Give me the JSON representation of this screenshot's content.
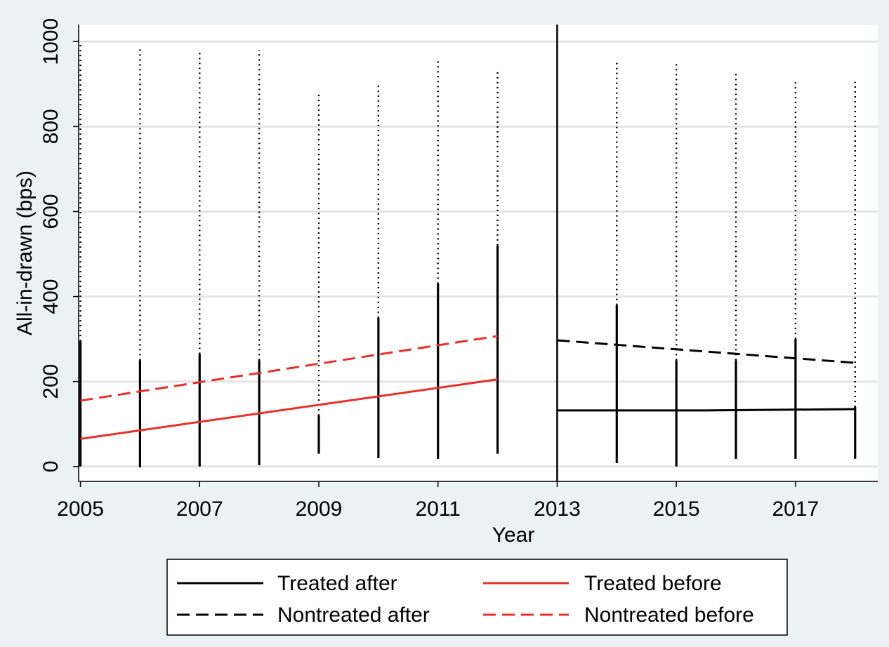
{
  "chart_data": {
    "type": "line",
    "xlabel": "Year",
    "ylabel": "All-in-drawn (bps)",
    "xlim": [
      2004.97,
      2018.38
    ],
    "ylim": [
      -35,
      1040
    ],
    "x_ticks": [
      2005,
      2007,
      2009,
      2011,
      2013,
      2015,
      2017
    ],
    "y_ticks": [
      0,
      200,
      400,
      600,
      800,
      1000
    ],
    "grid": "horizontal",
    "treatment_year": 2013,
    "legend_position": "bottom",
    "series": [
      {
        "name": "Treated after",
        "color": "#000000",
        "dash": "solid",
        "x": [
          2013,
          2015.5,
          2018
        ],
        "y": [
          132,
          132,
          135
        ]
      },
      {
        "name": "Treated before",
        "color": "#e8302a",
        "dash": "solid",
        "x": [
          2005,
          2012
        ],
        "y": [
          65,
          205
        ]
      },
      {
        "name": "Nontreated after",
        "color": "#000000",
        "dash": "dashed",
        "x": [
          2013,
          2018
        ],
        "y": [
          297,
          244
        ]
      },
      {
        "name": "Nontreated before",
        "color": "#e8302a",
        "dash": "dashed",
        "x": [
          2005,
          2012
        ],
        "y": [
          155,
          307
        ]
      }
    ],
    "scatter": [
      {
        "x": 2005,
        "solid_to": 295,
        "dots_to": 995
      },
      {
        "x": 2006,
        "solid_to": 250,
        "dots_to": 990
      },
      {
        "x": 2007,
        "solid_to": 265,
        "dots_to": 980
      },
      {
        "x": 2008,
        "solid_to": 250,
        "dots_to": 980
      },
      {
        "x": 2009,
        "solid_to": 120,
        "dots_to": 880
      },
      {
        "x": 2010,
        "solid_to": 350,
        "dots_to": 905
      },
      {
        "x": 2011,
        "solid_to": 430,
        "dots_to": 955
      },
      {
        "x": 2012,
        "solid_to": 520,
        "dots_to": 930
      },
      {
        "x": 2014,
        "solid_to": 380,
        "dots_to": 955
      },
      {
        "x": 2015,
        "solid_to": 250,
        "dots_to": 955
      },
      {
        "x": 2016,
        "solid_to": 250,
        "dots_to": 930
      },
      {
        "x": 2017,
        "solid_to": 300,
        "dots_to": 905
      },
      {
        "x": 2018,
        "solid_to": 140,
        "dots_to": 905
      }
    ],
    "scatter_min": [
      0,
      -2,
      0,
      3,
      30,
      20,
      18,
      30,
      8,
      0,
      18,
      18,
      18
    ]
  }
}
